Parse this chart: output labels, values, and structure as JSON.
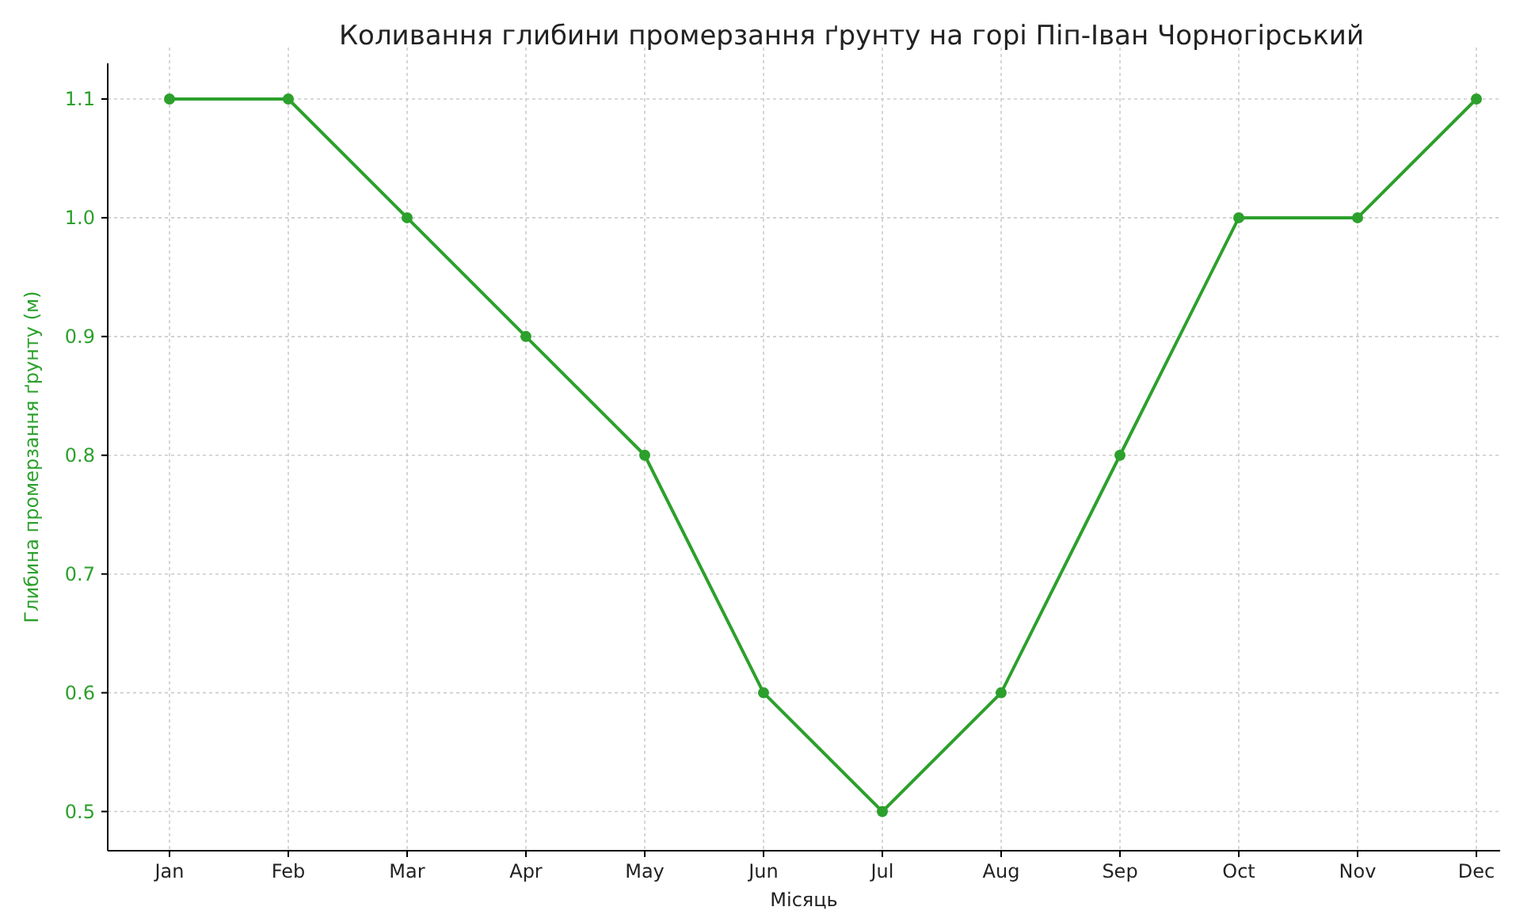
{
  "chart_data": {
    "type": "line",
    "title": "Коливання глибини промерзання ґрунту на горі Піп-Іван Чорногірський",
    "xlabel": "Місяць",
    "ylabel": "Глибина промерзання ґрунту (м)",
    "categories": [
      "Jan",
      "Feb",
      "Mar",
      "Apr",
      "May",
      "Jun",
      "Jul",
      "Aug",
      "Sep",
      "Oct",
      "Nov",
      "Dec"
    ],
    "series": [
      {
        "color": "#2ca02c",
        "values": [
          1.1,
          1.1,
          1.0,
          0.9,
          0.8,
          0.6,
          0.5,
          0.6,
          0.8,
          1.0,
          1.0,
          1.1
        ]
      }
    ],
    "ylim": [
      0.467,
      1.13
    ],
    "yticks": [
      {
        "value": 0.5,
        "label": "0.5"
      },
      {
        "value": 0.6,
        "label": "0.6"
      },
      {
        "value": 0.7,
        "label": "0.7"
      },
      {
        "value": 0.8,
        "label": "0.8"
      },
      {
        "value": 0.9,
        "label": "0.9"
      },
      {
        "value": 1.0,
        "label": "1.0"
      },
      {
        "value": 1.1,
        "label": "1.1"
      }
    ],
    "grid": true,
    "marker": "circle",
    "line_style": "solid"
  }
}
